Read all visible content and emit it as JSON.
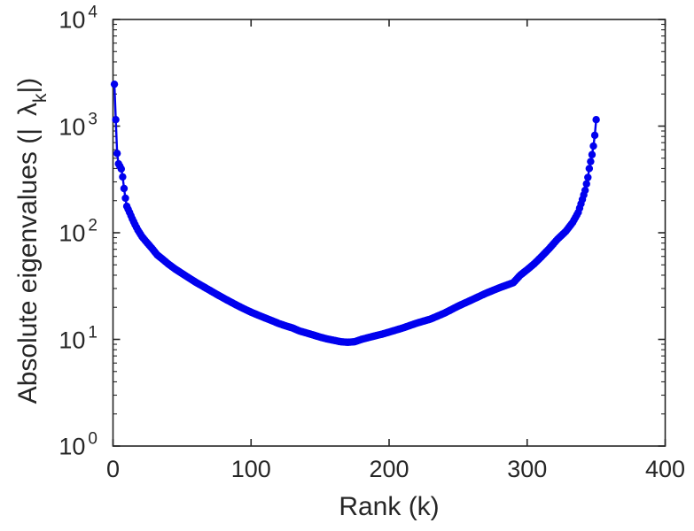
{
  "figure": {
    "background": "#ffffff",
    "axes_color": "#262626",
    "text_color": "#262626"
  },
  "chart_data": {
    "type": "line",
    "title": "",
    "xlabel": "Rank (k)",
    "ylabel": "Absolute eigenvalues (|λ_k|)",
    "ylabel_parts": {
      "prefix": "Absolute eigenvalues (|",
      "symbol": "λ",
      "subscript": "k",
      "suffix": "|)"
    },
    "grid": false,
    "legend": false,
    "box": true,
    "x_axis": {
      "scale": "linear",
      "min": 0,
      "max": 400,
      "ticks": [
        0,
        100,
        200,
        300,
        400
      ],
      "tick_labels": [
        "0",
        "100",
        "200",
        "300",
        "400"
      ],
      "minor_ticks": false
    },
    "y_axis": {
      "scale": "log",
      "min_exp": 0,
      "max_exp": 4,
      "tick_base": "10",
      "tick_exponents": [
        0,
        1,
        2,
        3,
        4
      ],
      "minor_tick_multipliers": [
        2,
        3,
        4,
        5,
        6,
        7,
        8,
        9
      ]
    },
    "series": [
      {
        "name": "absolute-eigenvalues",
        "color": "#0101ee",
        "marker": "filled-circle",
        "marker_radius": 4.2,
        "line_width": 2.4,
        "k_start": 1,
        "n_points": 350,
        "interpolation": "log-linear",
        "anchors": [
          [
            1,
            2470
          ],
          [
            2,
            1150
          ],
          [
            3,
            555
          ],
          [
            4,
            443
          ],
          [
            5,
            420
          ],
          [
            6,
            397
          ],
          [
            7,
            334
          ],
          [
            8,
            260
          ],
          [
            9,
            211
          ],
          [
            10,
            177
          ],
          [
            12,
            155
          ],
          [
            14,
            135
          ],
          [
            16,
            119
          ],
          [
            18,
            106
          ],
          [
            21,
            92
          ],
          [
            24,
            82.5
          ],
          [
            28,
            72
          ],
          [
            32,
            62
          ],
          [
            36,
            56.4
          ],
          [
            40,
            51
          ],
          [
            45,
            45.7
          ],
          [
            50,
            41.5
          ],
          [
            55,
            37.7
          ],
          [
            60,
            34.3
          ],
          [
            65,
            31.5
          ],
          [
            70,
            28.9
          ],
          [
            75,
            26.5
          ],
          [
            80,
            24.4
          ],
          [
            85,
            22.5
          ],
          [
            90,
            20.8
          ],
          [
            95,
            19.3
          ],
          [
            100,
            18
          ],
          [
            105,
            16.9
          ],
          [
            110,
            15.9
          ],
          [
            115,
            15
          ],
          [
            120,
            14.1
          ],
          [
            125,
            13.4
          ],
          [
            130,
            12.8
          ],
          [
            135,
            12
          ],
          [
            140,
            11.5
          ],
          [
            145,
            11
          ],
          [
            150,
            10.5
          ],
          [
            155,
            10.1
          ],
          [
            160,
            9.8
          ],
          [
            165,
            9.5
          ],
          [
            170,
            9.4
          ],
          [
            175,
            9.5
          ],
          [
            180,
            10
          ],
          [
            185,
            10.4
          ],
          [
            190,
            10.8
          ],
          [
            195,
            11.2
          ],
          [
            200,
            11.7
          ],
          [
            210,
            12.8
          ],
          [
            220,
            14.2
          ],
          [
            230,
            15.5
          ],
          [
            240,
            17.6
          ],
          [
            250,
            20.5
          ],
          [
            260,
            23.5
          ],
          [
            270,
            27
          ],
          [
            280,
            30.5
          ],
          [
            290,
            34
          ],
          [
            295,
            40
          ],
          [
            300,
            45
          ],
          [
            305,
            51
          ],
          [
            310,
            59
          ],
          [
            316,
            71
          ],
          [
            322,
            87
          ],
          [
            328,
            103
          ],
          [
            333,
            125
          ],
          [
            337,
            155
          ],
          [
            340,
            205
          ],
          [
            342,
            250
          ],
          [
            344,
            330
          ],
          [
            345,
            400
          ],
          [
            346,
            465
          ],
          [
            347,
            540
          ],
          [
            348,
            650
          ],
          [
            349,
            820
          ],
          [
            350,
            1150
          ]
        ]
      }
    ]
  }
}
